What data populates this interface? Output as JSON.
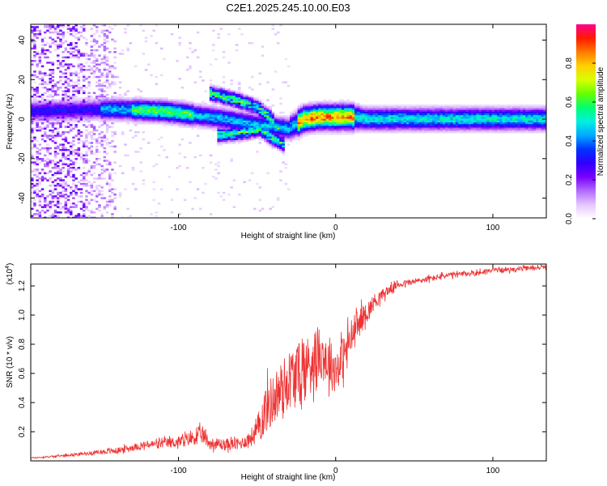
{
  "title": "C2E1.2025.245.10.00.E03",
  "chart_data": [
    {
      "type": "heatmap",
      "title": "C2E1.2025.245.10.00.E03",
      "xlabel": "Height of straight line (km)",
      "ylabel": "Frequency (Hz)",
      "xlim": [
        -194,
        134
      ],
      "ylim": [
        -50,
        48
      ],
      "xticks": [
        -100,
        0,
        100
      ],
      "yticks": [
        -40,
        -20,
        0,
        20,
        40
      ],
      "colorbar": {
        "label": "Normalized spectral amplitude",
        "range": [
          0.0,
          1.0
        ],
        "ticks": [
          0.0,
          0.2,
          0.4,
          0.6,
          0.8
        ],
        "colormap": [
          "#ffffff",
          "#e6c8ff",
          "#b26bff",
          "#7a00ff",
          "#2e00ff",
          "#0033ff",
          "#00aaff",
          "#00f0e0",
          "#00ff70",
          "#66ff00",
          "#d8ff00",
          "#ffd000",
          "#ff7a00",
          "#ff1a00",
          "#ff0090"
        ]
      },
      "features": [
        {
          "name": "main-band",
          "x": [
            -194,
            -140,
            -110,
            -90,
            -70,
            -50,
            -30,
            -20,
            -10,
            0,
            10,
            20,
            60,
            100,
            134
          ],
          "freq": [
            4,
            5,
            4,
            2,
            0,
            -3,
            -5,
            0,
            1,
            1,
            1,
            0,
            0,
            0,
            0
          ]
        },
        {
          "name": "upper-branch",
          "x": [
            -80,
            -65,
            -50,
            -42,
            -35
          ],
          "freq": [
            13,
            10,
            6,
            1,
            -6
          ]
        },
        {
          "name": "lower-branch",
          "x": [
            -75,
            -60,
            -48,
            -40,
            -32
          ],
          "freq": [
            -8,
            -7,
            -5,
            -10,
            -13
          ]
        }
      ]
    },
    {
      "type": "line",
      "xlabel": "Height of straight line (km)",
      "ylabel": "SNR (10 * v/v)",
      "multiplier_label": "(x10",
      "multiplier_exp": "4",
      "xlim": [
        -194,
        134
      ],
      "ylim": [
        0.0,
        1.35
      ],
      "xticks": [
        -100,
        0,
        100
      ],
      "yticks": [
        0.2,
        0.4,
        0.6,
        0.8,
        1.0,
        1.2
      ],
      "color": "#ee3333",
      "series": [
        {
          "name": "SNR",
          "x": [
            -194,
            -180,
            -160,
            -140,
            -120,
            -100,
            -90,
            -85,
            -80,
            -70,
            -60,
            -55,
            -50,
            -45,
            -40,
            -35,
            -30,
            -25,
            -20,
            -15,
            -10,
            -5,
            0,
            5,
            10,
            15,
            20,
            25,
            30,
            35,
            40,
            50,
            60,
            70,
            80,
            90,
            100,
            110,
            120,
            134
          ],
          "y": [
            0.02,
            0.03,
            0.05,
            0.07,
            0.11,
            0.13,
            0.16,
            0.18,
            0.12,
            0.11,
            0.12,
            0.15,
            0.2,
            0.35,
            0.42,
            0.48,
            0.56,
            0.58,
            0.62,
            0.7,
            0.75,
            0.68,
            0.62,
            0.72,
            0.85,
            0.95,
            1.02,
            1.1,
            1.14,
            1.18,
            1.21,
            1.23,
            1.25,
            1.27,
            1.28,
            1.29,
            1.31,
            1.31,
            1.32,
            1.33
          ],
          "noise": [
            0.005,
            0.006,
            0.01,
            0.02,
            0.025,
            0.04,
            0.05,
            0.06,
            0.04,
            0.04,
            0.04,
            0.05,
            0.1,
            0.17,
            0.18,
            0.2,
            0.2,
            0.22,
            0.22,
            0.2,
            0.18,
            0.17,
            0.16,
            0.15,
            0.13,
            0.1,
            0.07,
            0.05,
            0.04,
            0.03,
            0.025,
            0.02,
            0.02,
            0.02,
            0.02,
            0.02,
            0.015,
            0.015,
            0.015,
            0.015
          ]
        }
      ]
    }
  ]
}
